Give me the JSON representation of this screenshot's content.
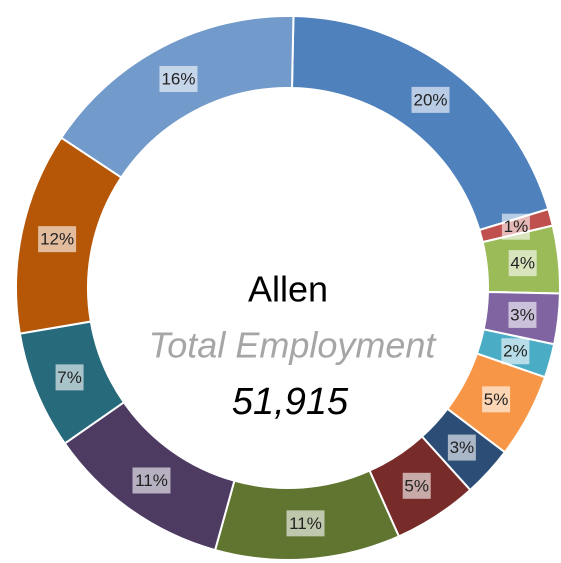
{
  "chart_data": {
    "type": "donut",
    "center_title": "Allen",
    "center_subtitle": "Total Employment",
    "center_value": "51,915",
    "values": [
      20,
      1,
      4,
      3,
      2,
      5,
      3,
      5,
      11,
      11,
      7,
      12,
      16
    ],
    "value_labels": [
      "20%",
      "1%",
      "4%",
      "3%",
      "2%",
      "5%",
      "3%",
      "5%",
      "11%",
      "11%",
      "7%",
      "12%",
      "16%"
    ],
    "colors": [
      "#4f81bd",
      "#c0504d",
      "#9bbb59",
      "#8064a2",
      "#4bacc6",
      "#f79646",
      "#2c4d75",
      "#772c2a",
      "#5f7530",
      "#4d3b62",
      "#276a7c",
      "#b65708",
      "#729aca"
    ]
  }
}
